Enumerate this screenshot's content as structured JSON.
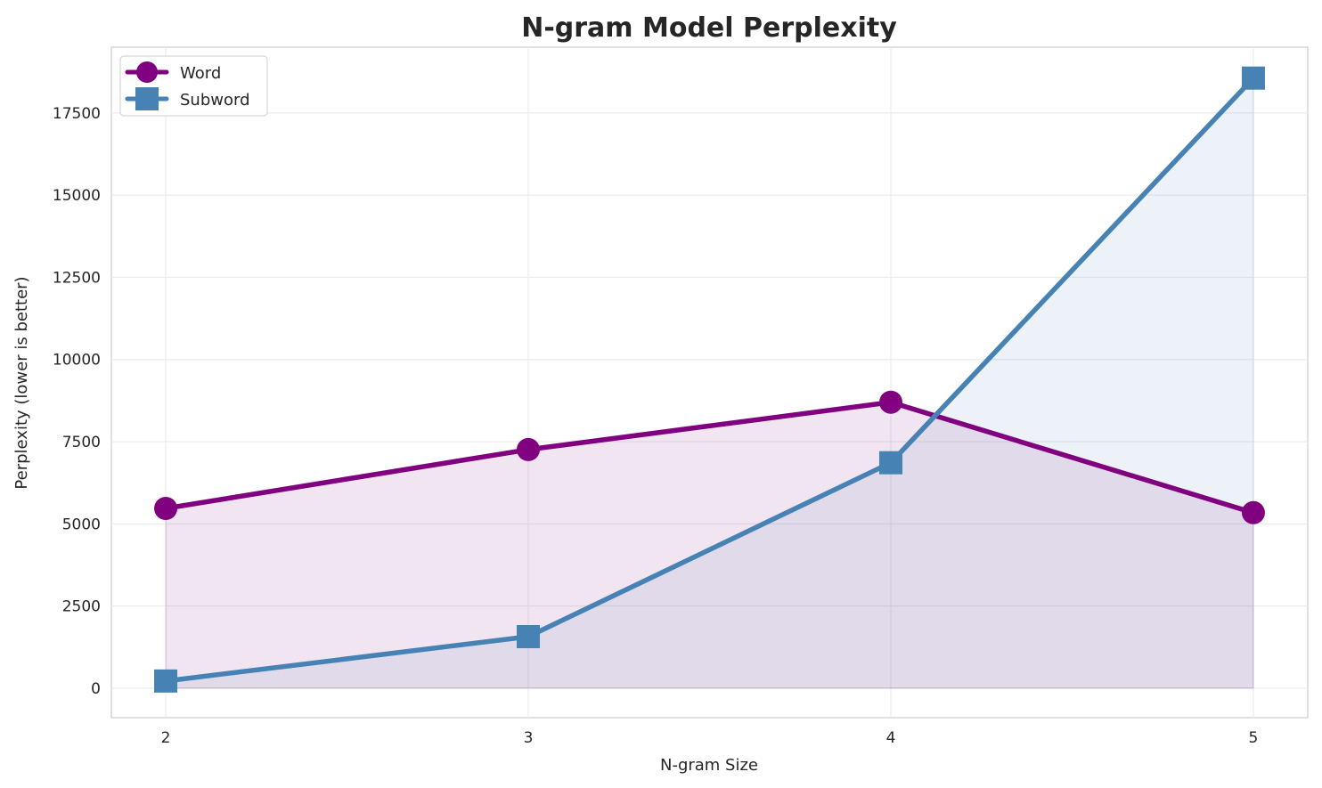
{
  "chart_data": {
    "type": "line",
    "title": "N-gram Model Perplexity",
    "xlabel": "N-gram Size",
    "ylabel": "Perplexity (lower is better)",
    "x": [
      2,
      3,
      4,
      5
    ],
    "xticks": [
      "2",
      "3",
      "4",
      "5"
    ],
    "yticks": [
      0,
      2500,
      5000,
      7500,
      10000,
      12500,
      15000,
      17500
    ],
    "xlim": [
      1.85,
      5.15
    ],
    "ylim": [
      -895,
      19500
    ],
    "grid": true,
    "legend_position": "top-left",
    "filled_area_to_zero": true,
    "series": [
      {
        "name": "Word",
        "values": [
          5470,
          7260,
          8700,
          5340
        ],
        "color": "#800080",
        "marker": "circle"
      },
      {
        "name": "Subword",
        "values": [
          220,
          1570,
          6860,
          18560
        ],
        "color": "#4682B4",
        "marker": "square"
      }
    ]
  }
}
